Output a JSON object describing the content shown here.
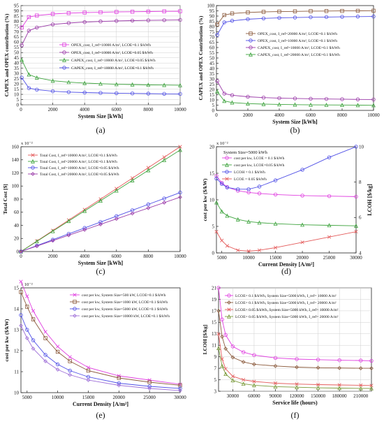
{
  "colors": {
    "magenta": "#e040e0",
    "red": "#e45a5a",
    "blue": "#5050e6",
    "green": "#3fa43f",
    "dark_green": "#2e8b2e",
    "purple": "#9a3aa8",
    "brown": "#8b5a3c",
    "olive": "#7a9a3a",
    "lavender": "#9f6fd8"
  },
  "chart_data": [
    {
      "id": "a",
      "caption": "(a)",
      "type": "line",
      "xlabel": "System Size [kWh]",
      "ylabel": "CAPEX and OPEX contribution (%)",
      "xlim": [
        0,
        10000
      ],
      "ylim": [
        0,
        95
      ],
      "xticks": [
        0,
        2000,
        4000,
        6000,
        8000,
        10000
      ],
      "yticks": [
        0,
        5,
        10,
        15,
        20,
        25,
        30,
        35,
        40,
        45,
        50,
        55,
        60,
        65,
        70,
        75,
        80,
        85,
        90,
        95
      ],
      "grid": true,
      "legend_position": "middle-right",
      "series": [
        {
          "name": "OPEX_cost, I_ref=10000 A/m², LCOE=0.1 $/kWh",
          "color": "#e040e0",
          "marker": "square",
          "x": [
            50,
            500,
            1000,
            2000,
            3000,
            4000,
            5000,
            6000,
            7000,
            8000,
            9000,
            10000
          ],
          "values": [
            74,
            84,
            85.5,
            87,
            87.8,
            88.3,
            88.6,
            88.9,
            89.1,
            89.3,
            89.5,
            89.6
          ]
        },
        {
          "name": "OPEX_cost, I_ref=10000 A/m², LCOE=0.05 $/kWh",
          "color": "#9a3aa8",
          "marker": "circle",
          "x": [
            50,
            500,
            1000,
            2000,
            3000,
            4000,
            5000,
            6000,
            7000,
            8000,
            9000,
            10000
          ],
          "values": [
            57,
            71,
            74,
            77,
            78.3,
            79.2,
            79.8,
            80.3,
            80.6,
            80.9,
            81.1,
            81.3
          ]
        },
        {
          "name": "CAPEX_cost, I_ref=10000 A/m², LCOE=0.05 $/kWh",
          "color": "#3fa43f",
          "marker": "triangle",
          "x": [
            50,
            500,
            1000,
            2000,
            3000,
            4000,
            5000,
            6000,
            7000,
            8000,
            9000,
            10000
          ],
          "values": [
            43,
            29,
            26,
            23,
            21.7,
            20.8,
            20.2,
            19.7,
            19.4,
            19.1,
            18.9,
            18.7
          ]
        },
        {
          "name": "CAPEX_cost, I_ref=10000 A/m², LCOE=0.1 $/kWh",
          "color": "#5050e6",
          "marker": "circle",
          "x": [
            50,
            500,
            1000,
            2000,
            3000,
            4000,
            5000,
            6000,
            7000,
            8000,
            9000,
            10000
          ],
          "values": [
            26,
            16,
            14.5,
            13,
            12.2,
            11.7,
            11.4,
            11.1,
            10.9,
            10.7,
            10.5,
            10.4
          ]
        }
      ]
    },
    {
      "id": "b",
      "caption": "(b)",
      "type": "line",
      "xlabel": "System Size [kWh]",
      "ylabel": "CAPEX and OPEX Contribution (%)",
      "xlim": [
        0,
        10000
      ],
      "ylim": [
        0,
        100
      ],
      "xticks": [
        0,
        2000,
        4000,
        6000,
        8000,
        10000
      ],
      "yticks": [
        0,
        5,
        10,
        15,
        20,
        25,
        30,
        35,
        40,
        45,
        50,
        55,
        60,
        65,
        70,
        75,
        80,
        85,
        90,
        95,
        100
      ],
      "grid": false,
      "legend_position": "middle-right",
      "series": [
        {
          "name": "OPEX_cost, I_ref=20000 A/m², LCOE=0.1 $/kWh",
          "color": "#8b5a3c",
          "marker": "square",
          "x": [
            50,
            500,
            1000,
            2000,
            3000,
            4000,
            5000,
            6000,
            7000,
            8000,
            9000,
            10000
          ],
          "values": [
            82,
            91,
            92.5,
            93.5,
            94,
            94.3,
            94.5,
            94.7,
            94.8,
            94.9,
            95,
            95.1
          ]
        },
        {
          "name": "OPEX_cost, I_ref=10000 A/m², LCOE=0.1 $/kWh",
          "color": "#5050e6",
          "marker": "circle",
          "x": [
            50,
            500,
            1000,
            2000,
            3000,
            4000,
            5000,
            6000,
            7000,
            8000,
            9000,
            10000
          ],
          "values": [
            72,
            84,
            85.5,
            87,
            87.8,
            88.3,
            88.6,
            88.9,
            89.1,
            89.3,
            89.5,
            89.6
          ]
        },
        {
          "name": "CAPEX_cost, I_ref=10000 A/m², LCOE=0.1 $/kWh",
          "color": "#9a3aa8",
          "marker": "circle",
          "x": [
            50,
            500,
            1000,
            2000,
            3000,
            4000,
            5000,
            6000,
            7000,
            8000,
            9000,
            10000
          ],
          "values": [
            28,
            16,
            14.5,
            13,
            12.2,
            11.7,
            11.4,
            11.1,
            10.9,
            10.7,
            10.5,
            10.4
          ]
        },
        {
          "name": "CAPEX_cost, I_ref=20000 A/m², LCOE=0.1 $/kWh",
          "color": "#3fa43f",
          "marker": "triangle",
          "x": [
            50,
            500,
            1000,
            2000,
            3000,
            4000,
            5000,
            6000,
            7000,
            8000,
            9000,
            10000
          ],
          "values": [
            18,
            9,
            7.5,
            6.5,
            6,
            5.7,
            5.5,
            5.3,
            5.2,
            5.1,
            5,
            4.9
          ]
        }
      ]
    },
    {
      "id": "c",
      "caption": "(c)",
      "type": "line",
      "xlabel": "System Size [kWh]",
      "ylabel": "Total Cost [$]",
      "y_multiplier": "x 10⁻²",
      "xlim": [
        0,
        10000
      ],
      "ylim": [
        0,
        160
      ],
      "xticks": [
        0,
        2000,
        4000,
        6000,
        8000,
        10000
      ],
      "yticks": [
        0,
        20,
        40,
        60,
        80,
        100,
        120,
        140,
        160
      ],
      "grid": false,
      "legend_position": "top-left",
      "series": [
        {
          "name": "Total Cost, I_ref=10000 A/m², LCOE=0.1 $/kWh",
          "color": "#e45a5a",
          "marker": "cross",
          "x": [
            0,
            1000,
            2000,
            3000,
            4000,
            5000,
            6000,
            7000,
            8000,
            9000,
            10000
          ],
          "values": [
            0,
            16,
            32,
            48,
            64,
            80,
            96,
            112,
            128,
            144,
            160
          ]
        },
        {
          "name": "Total Cost, I_ref=20000 A/m², LCOE=0.1 $/kWh",
          "color": "#3fa43f",
          "marker": "triangle",
          "x": [
            0,
            1000,
            2000,
            3000,
            4000,
            5000,
            6000,
            7000,
            8000,
            9000,
            10000
          ],
          "values": [
            0,
            15.5,
            31,
            46.5,
            62,
            77.5,
            93,
            108.5,
            124,
            139.5,
            155
          ]
        },
        {
          "name": "Total Cost, I_ref=10000 A/m², LCOE=0.05 $/kWh",
          "color": "#5050e6",
          "marker": "circle",
          "x": [
            0,
            1000,
            2000,
            3000,
            4000,
            5000,
            6000,
            7000,
            8000,
            9000,
            10000
          ],
          "values": [
            0,
            9,
            18,
            27,
            36,
            45,
            54,
            63,
            72,
            81,
            90
          ]
        },
        {
          "name": "Total Cost, I_ref=20000 A/m², LCOE=0.05 $/kWh",
          "color": "#9a3aa8",
          "marker": "diamond",
          "x": [
            0,
            1000,
            2000,
            3000,
            4000,
            5000,
            6000,
            7000,
            8000,
            9000,
            10000
          ],
          "values": [
            0,
            8.3,
            16.6,
            24.9,
            33.2,
            41.5,
            49.8,
            58.1,
            66.4,
            74.7,
            83
          ]
        }
      ]
    },
    {
      "id": "d",
      "caption": "(d)",
      "type": "line",
      "xlabel": "Current Density [A/m²]",
      "ylabel": "cost per kw ($/kW)",
      "y2label": "LCOH [$/kg]",
      "y_multiplier": "x 10⁻²",
      "annotation": "System Size=5000 kWh",
      "xlim": [
        4000,
        30000
      ],
      "ylim": [
        0,
        20
      ],
      "y2lim": [
        4,
        10
      ],
      "xticks": [
        5000,
        10000,
        15000,
        20000,
        25000,
        30000
      ],
      "yticks": [
        0,
        5,
        10,
        15,
        20
      ],
      "y2ticks": [
        4,
        6,
        8,
        10
      ],
      "grid": false,
      "legend_position": "top-left",
      "series": [
        {
          "name": "cost per kw, LCOE = 0.1 $/kWh",
          "color": "#e040e0",
          "marker": "circle",
          "axis": "left",
          "x": [
            4000,
            5000,
            6000,
            8000,
            10000,
            12000,
            15000,
            20000,
            25000,
            30000
          ],
          "values": [
            14.5,
            13.2,
            12.4,
            11.7,
            11.4,
            11.2,
            11.0,
            10.8,
            10.7,
            10.6
          ]
        },
        {
          "name": "cost per kw, LCOE=0.05 $/kWh",
          "color": "#3fa43f",
          "marker": "triangle",
          "axis": "left",
          "x": [
            4000,
            5000,
            6000,
            8000,
            10000,
            12000,
            15000,
            20000,
            25000,
            30000
          ],
          "values": [
            9.5,
            7.8,
            7.0,
            6.3,
            5.9,
            5.7,
            5.5,
            5.3,
            5.2,
            5.1
          ]
        },
        {
          "name": "LCOH = 0.1 $/kWh",
          "color": "#5050e6",
          "marker": "circle",
          "axis": "right",
          "x": [
            4000,
            5000,
            6000,
            8000,
            10000,
            12000,
            15000,
            20000,
            25000,
            30000
          ],
          "values": [
            8.2,
            7.9,
            7.7,
            7.6,
            7.6,
            7.75,
            8.1,
            8.7,
            9.4,
            10.0
          ]
        },
        {
          "name": "LCOE = 0.05 $/kWh",
          "color": "#e45a5a",
          "marker": "cross",
          "axis": "right",
          "x": [
            4000,
            5000,
            6000,
            8000,
            10000,
            12000,
            15000,
            20000,
            25000,
            30000
          ],
          "values": [
            5.2,
            4.7,
            4.4,
            4.15,
            4.1,
            4.15,
            4.3,
            4.6,
            4.9,
            5.2
          ]
        }
      ]
    },
    {
      "id": "e",
      "caption": "(e)",
      "type": "line",
      "xlabel": "Current Density [A/m²]",
      "ylabel": "cost per kw ($/kW)",
      "y_multiplier": "x 10⁻²",
      "xlim": [
        4000,
        30000
      ],
      "ylim": [
        10,
        15
      ],
      "xticks": [
        5000,
        10000,
        15000,
        20000,
        25000,
        30000
      ],
      "yticks": [
        10,
        11,
        12,
        13,
        14,
        15
      ],
      "grid": false,
      "legend_position": "top-right",
      "series": [
        {
          "name": "cost per kw, System Size=500 kW, LCOE=0.1 $/kWh",
          "color": "#e040e0",
          "marker": "cross",
          "x": [
            4000,
            5000,
            6000,
            8000,
            10000,
            12000,
            15000,
            20000,
            25000,
            30000
          ],
          "values": [
            15.3,
            14.6,
            13.9,
            12.9,
            12.2,
            11.7,
            11.2,
            10.8,
            10.6,
            10.4
          ]
        },
        {
          "name": "cost per kw, System Size=1000 kW, LCOE=0.1 $/kWh",
          "color": "#8b5a3c",
          "marker": "square",
          "x": [
            4000,
            5000,
            6000,
            8000,
            10000,
            12000,
            15000,
            20000,
            25000,
            30000
          ],
          "values": [
            14.8,
            14.1,
            13.5,
            12.6,
            11.95,
            11.5,
            11.05,
            10.7,
            10.5,
            10.35
          ]
        },
        {
          "name": "cost per kw, System Size=5000 kW, LCOE=0.1 $/kWh",
          "color": "#5050e6",
          "marker": "circle",
          "x": [
            4000,
            5000,
            6000,
            8000,
            10000,
            12000,
            15000,
            20000,
            25000,
            30000
          ],
          "values": [
            13.7,
            13.0,
            12.5,
            11.8,
            11.35,
            11.05,
            10.75,
            10.45,
            10.3,
            10.2
          ]
        },
        {
          "name": "cost per kw, System Size=10000 kW, LCOE=0.1 $/kWh",
          "color": "#9f6fd8",
          "marker": "diamond",
          "x": [
            4000,
            5000,
            6000,
            8000,
            10000,
            12000,
            15000,
            20000,
            25000,
            30000
          ],
          "values": [
            13.2,
            12.6,
            12.1,
            11.5,
            11.1,
            10.85,
            10.6,
            10.35,
            10.2,
            10.1
          ]
        }
      ]
    },
    {
      "id": "f",
      "caption": "(f)",
      "type": "line",
      "xlabel": "Service life (hours)",
      "ylabel": "LCOH [$/kg]",
      "xlim": [
        10000,
        225000
      ],
      "ylim": [
        3,
        21
      ],
      "xticks": [
        30000,
        60000,
        90000,
        120000,
        150000,
        180000,
        210000
      ],
      "yticks": [
        3,
        5,
        7,
        9,
        11,
        13,
        15,
        17,
        19,
        21
      ],
      "grid": true,
      "legend_position": "top-right",
      "series": [
        {
          "name": "LCOE= 0.1 $/kWh, System Size=5000 kWh, I_ref= 10000 A/m²",
          "color": "#e040e0",
          "marker": "circle",
          "x": [
            10000,
            15000,
            20000,
            30000,
            45000,
            60000,
            90000,
            120000,
            150000,
            180000,
            210000,
            225000
          ],
          "values": [
            21,
            15.5,
            12.8,
            10.8,
            9.8,
            9.3,
            8.8,
            8.6,
            8.5,
            8.4,
            8.35,
            8.3
          ]
        },
        {
          "name": "LCOE= 0.1 $/kWh, System Size=5000 kWh, I_ref= 20000 A/m²",
          "color": "#8b5a3c",
          "marker": "diamond",
          "x": [
            10000,
            15000,
            20000,
            30000,
            45000,
            60000,
            90000,
            120000,
            150000,
            180000,
            210000,
            225000
          ],
          "values": [
            17,
            12.5,
            10.4,
            8.9,
            8.1,
            7.7,
            7.4,
            7.2,
            7.1,
            7.05,
            7.0,
            7.0
          ]
        },
        {
          "name": "LCOE= 0.05 $/kWh, System Size=5000 kWh, I_ref= 10000 A/m²",
          "color": "#e45a5a",
          "marker": "cross",
          "x": [
            10000,
            15000,
            20000,
            30000,
            45000,
            60000,
            90000,
            120000,
            150000,
            180000,
            210000,
            225000
          ],
          "values": [
            13,
            8.6,
            6.9,
            5.6,
            5.0,
            4.7,
            4.4,
            4.25,
            4.15,
            4.1,
            4.05,
            4.0
          ]
        },
        {
          "name": "LCOE= 0.05 $/kWh, System Size=5000 kWh, I_ref= 20000 A/m²",
          "color": "#7a9a3a",
          "marker": "triangle",
          "x": [
            10000,
            15000,
            20000,
            30000,
            45000,
            60000,
            90000,
            120000,
            150000,
            180000,
            210000,
            225000
          ],
          "values": [
            10.5,
            7.4,
            6.0,
            4.9,
            4.3,
            4.05,
            3.8,
            3.7,
            3.6,
            3.55,
            3.5,
            3.5
          ]
        }
      ]
    }
  ]
}
